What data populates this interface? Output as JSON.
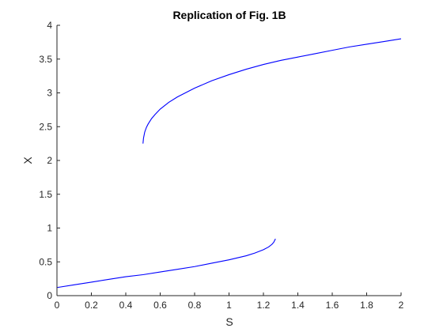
{
  "chart_data": {
    "type": "line",
    "title": "Replication of Fig. 1B",
    "xlabel": "S",
    "ylabel": "X",
    "xlim": [
      0,
      2
    ],
    "ylim": [
      0,
      4
    ],
    "xticks": [
      "0",
      "0.2",
      "0.4",
      "0.6",
      "0.8",
      "1",
      "1.2",
      "1.4",
      "1.6",
      "1.8",
      "2"
    ],
    "yticks": [
      "0",
      "0.5",
      "1",
      "1.5",
      "2",
      "2.5",
      "3",
      "3.5",
      "4"
    ],
    "grid": false,
    "legend": "none",
    "series": [
      {
        "color": "#0000ff",
        "x": [
          0.5,
          0.503,
          0.51,
          0.52,
          0.53,
          0.55,
          0.57,
          0.6,
          0.65,
          0.7,
          0.8,
          0.9,
          1.0,
          1.1,
          1.2,
          1.3,
          1.4,
          1.5,
          1.6,
          1.7,
          1.8,
          1.9,
          2.0
        ],
        "y": [
          2.25,
          2.33,
          2.42,
          2.49,
          2.54,
          2.62,
          2.68,
          2.76,
          2.86,
          2.94,
          3.07,
          3.18,
          3.27,
          3.35,
          3.42,
          3.48,
          3.53,
          3.58,
          3.63,
          3.68,
          3.72,
          3.76,
          3.8
        ]
      },
      {
        "color": "#0000ff",
        "x": [
          0,
          0.1,
          0.2,
          0.3,
          0.4,
          0.5,
          0.6,
          0.7,
          0.8,
          0.9,
          1.0,
          1.1,
          1.15,
          1.2,
          1.23,
          1.25,
          1.26,
          1.27
        ],
        "y": [
          0.12,
          0.16,
          0.2,
          0.24,
          0.28,
          0.31,
          0.35,
          0.39,
          0.43,
          0.48,
          0.53,
          0.59,
          0.63,
          0.68,
          0.72,
          0.76,
          0.79,
          0.84
        ]
      }
    ]
  }
}
